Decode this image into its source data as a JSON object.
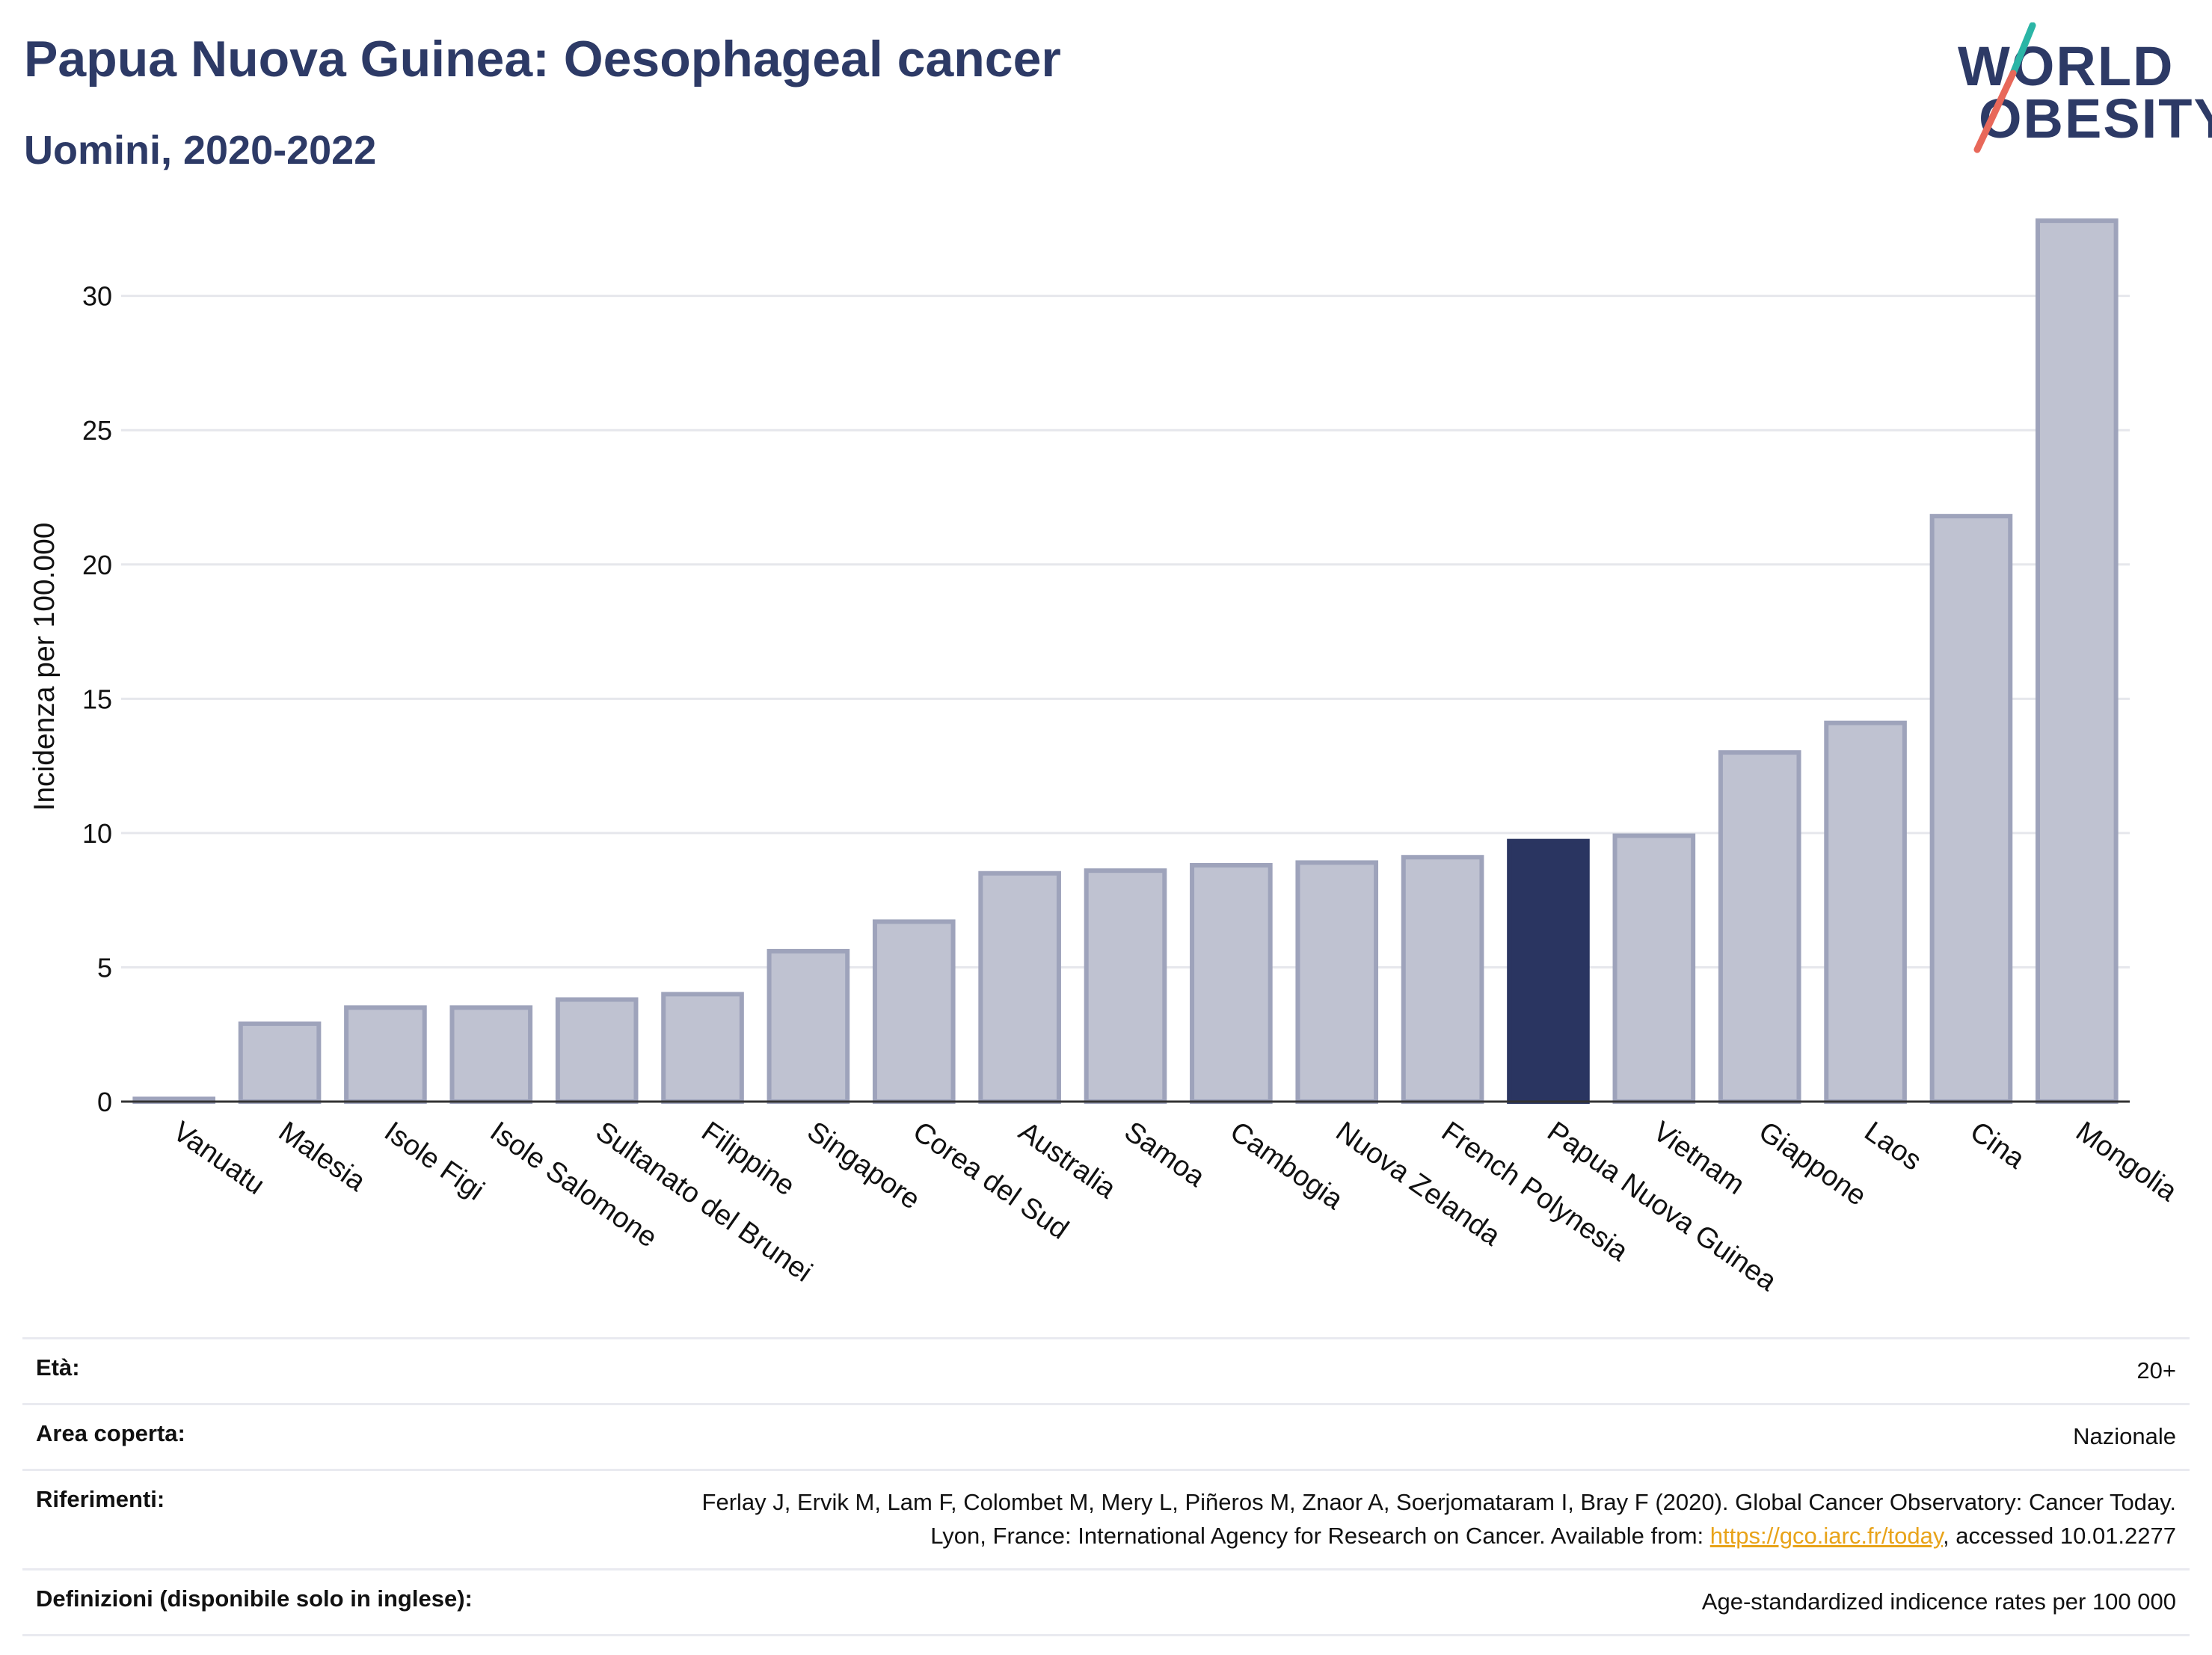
{
  "header": {
    "title": "Papua Nuova Guinea: Oesophageal cancer",
    "subtitle": "Uomini, 2020-2022"
  },
  "logo": {
    "line1": "WORLD",
    "line2": "OBESITY",
    "text_color": "#2d3a66",
    "slash_top": "#2bb5a6",
    "slash_bottom": "#e8685a"
  },
  "chart_data": {
    "type": "bar",
    "ylabel": "Incidenza per 100.000",
    "xlabel": "",
    "ylim": [
      0,
      33.5
    ],
    "yticks": [
      0,
      5,
      10,
      15,
      20,
      25,
      30
    ],
    "grid": true,
    "highlight": "Papua Nuova Guinea",
    "colors": {
      "bar": "#bfc2d1",
      "bar_border": "#9ea3bb",
      "highlight": "#2a3561"
    },
    "categories": [
      "Vanuatu",
      "Malesia",
      "Isole Figi",
      "Isole Salomone",
      "Sultanato del Brunei",
      "Filippine",
      "Singapore",
      "Corea del Sud",
      "Australia",
      "Samoa",
      "Cambogia",
      "Nuova Zelanda",
      "French Polynesia",
      "Papua Nuova Guinea",
      "Vietnam",
      "Giappone",
      "Laos",
      "Cina",
      "Mongolia"
    ],
    "values": [
      0.1,
      2.9,
      3.5,
      3.5,
      3.8,
      4.0,
      5.6,
      6.7,
      8.5,
      8.6,
      8.8,
      8.9,
      9.1,
      9.7,
      9.9,
      13.0,
      14.1,
      21.8,
      32.8
    ]
  },
  "info": {
    "rows": [
      {
        "label": "Età:",
        "value": "20+"
      },
      {
        "label": "Area coperta:",
        "value": "Nazionale"
      },
      {
        "label": "Riferimenti:",
        "value_pre": "Ferlay J, Ervik M, Lam F, Colombet M, Mery L, Piñeros M, Znaor A, Soerjomataram I, Bray F (2020). Global Cancer Observatory: Cancer Today. Lyon, France: International Agency for Research on Cancer. Available from: ",
        "link": "https://gco.iarc.fr/today",
        "value_post": ", accessed 10.01.2277"
      },
      {
        "label": "Definizioni (disponibile solo in inglese):",
        "value": "Age-standardized indicence rates per 100 000"
      }
    ]
  }
}
